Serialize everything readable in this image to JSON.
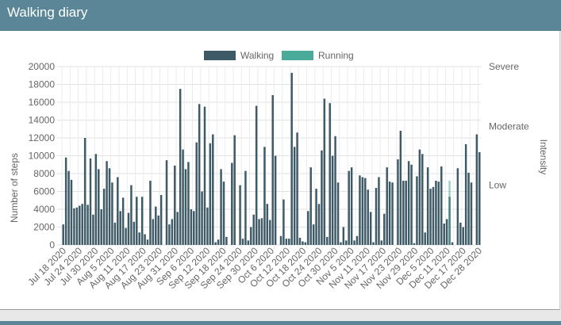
{
  "header": {
    "title": "Walking diary"
  },
  "chart_data": {
    "type": "bar",
    "title": "",
    "ylabel": "Number of steps",
    "y2label": "Intensity",
    "ylim": [
      0,
      20000
    ],
    "yticks": [
      0,
      2000,
      4000,
      6000,
      8000,
      10000,
      12000,
      14000,
      16000,
      18000,
      20000
    ],
    "y2ticks": [
      {
        "label": "Low",
        "value": 6700
      },
      {
        "label": "Moderate",
        "value": 13300
      },
      {
        "label": "Severe",
        "value": 20000
      }
    ],
    "grid": true,
    "legend_position": "top-center",
    "x_start": "2020-07-18",
    "x_end": "2020-12-31",
    "xtick_labels": [
      "Jul 18 2020",
      "Jul 24 2020",
      "Jul 30 2020",
      "Aug 5 2020",
      "Aug 11 2020",
      "Aug 17 2020",
      "Aug 23 2020",
      "Aug 31 2020",
      "Sep 6 2020",
      "Sep 12 2020",
      "Sep 18 2020",
      "Sep 24 2020",
      "Sep 30 2020",
      "Oct 6 2020",
      "Oct 12 2020",
      "Oct 18 2020",
      "Oct 24 2020",
      "Oct 30 2020",
      "Nov 5 2020",
      "Nov 11 2020",
      "Nov 17 2020",
      "Nov 23 2020",
      "Nov 29 2020",
      "Dec 5 2020",
      "Dec 11 2020",
      "Dec 17 2020",
      "Dec 28 2020"
    ],
    "series": [
      {
        "name": "Walking",
        "color": "#3e5a66",
        "values": [
          2300,
          9800,
          8300,
          7300,
          4100,
          4200,
          4400,
          4600,
          12000,
          4500,
          9700,
          3400,
          10200,
          8500,
          4000,
          6300,
          9400,
          8600,
          7000,
          2500,
          7600,
          3800,
          5300,
          1900,
          3600,
          6700,
          2600,
          5400,
          1400,
          5400,
          1200,
          600,
          7200,
          2900,
          4300,
          3300,
          5600,
          0,
          9500,
          2300,
          2900,
          8900,
          3700,
          17500,
          10700,
          8500,
          9300,
          4000,
          3800,
          11500,
          15800,
          6000,
          15500,
          4200,
          11400,
          12400,
          300,
          600,
          8500,
          7100,
          900,
          0,
          9200,
          12300,
          0,
          6700,
          700,
          8300,
          500,
          2000,
          3400,
          15600,
          2900,
          3000,
          11000,
          4600,
          2800,
          16800,
          10000,
          0,
          1000,
          5100,
          700,
          700,
          19300,
          11000,
          12600,
          800,
          400,
          300,
          3800,
          8700,
          2300,
          6300,
          4600,
          10600,
          16400,
          900,
          15900,
          10000,
          12200,
          7000,
          300,
          2000,
          500,
          8300,
          8700,
          500,
          1000,
          7800,
          7600,
          7500,
          6200,
          3700,
          300,
          6400,
          7600,
          500,
          3500,
          8700,
          7100,
          7000,
          0,
          9600,
          12800,
          7200,
          7200,
          9400,
          9000,
          200,
          7700,
          10700,
          10200,
          1400,
          8700,
          6300,
          6500,
          7200,
          7100,
          8800,
          2400,
          2900,
          5400,
          300,
          0,
          8600,
          2500,
          2000,
          11300,
          8100,
          7000,
          0,
          12400,
          10400
        ],
        "overlay": [
          0,
          0,
          0,
          0,
          0,
          0,
          0,
          0,
          0,
          0,
          0,
          0,
          0,
          0,
          0,
          0,
          0,
          0,
          0,
          0,
          0,
          0,
          0,
          0,
          0,
          0,
          0,
          0,
          0,
          0,
          0,
          0,
          0,
          0,
          0,
          0,
          0,
          0,
          0,
          0,
          0,
          0,
          0,
          0,
          0,
          0,
          0,
          0,
          0,
          0,
          0,
          0,
          0,
          0,
          0,
          0,
          0,
          0,
          0,
          0,
          0,
          0,
          0,
          0,
          0,
          0,
          0,
          0,
          0,
          0,
          0,
          0,
          0,
          0,
          0,
          0,
          0,
          0,
          0,
          0,
          0,
          0,
          0,
          0,
          0,
          0,
          0,
          0,
          0,
          0,
          0,
          0,
          0,
          0,
          0,
          0,
          0,
          0,
          0,
          0,
          0,
          0,
          0,
          0,
          0,
          0,
          0,
          0,
          0,
          0,
          0,
          0,
          0,
          0,
          0,
          0,
          0,
          0,
          0,
          0,
          0,
          0,
          0,
          0,
          0,
          0,
          0,
          0,
          0,
          0,
          0,
          0,
          0,
          0,
          0,
          0,
          0,
          0,
          0,
          0,
          0,
          0,
          7200,
          0,
          0,
          0,
          0,
          0,
          0,
          0,
          0,
          0,
          0,
          0,
          0,
          0
        ]
      },
      {
        "name": "Running",
        "color": "#4aab9b"
      }
    ]
  }
}
